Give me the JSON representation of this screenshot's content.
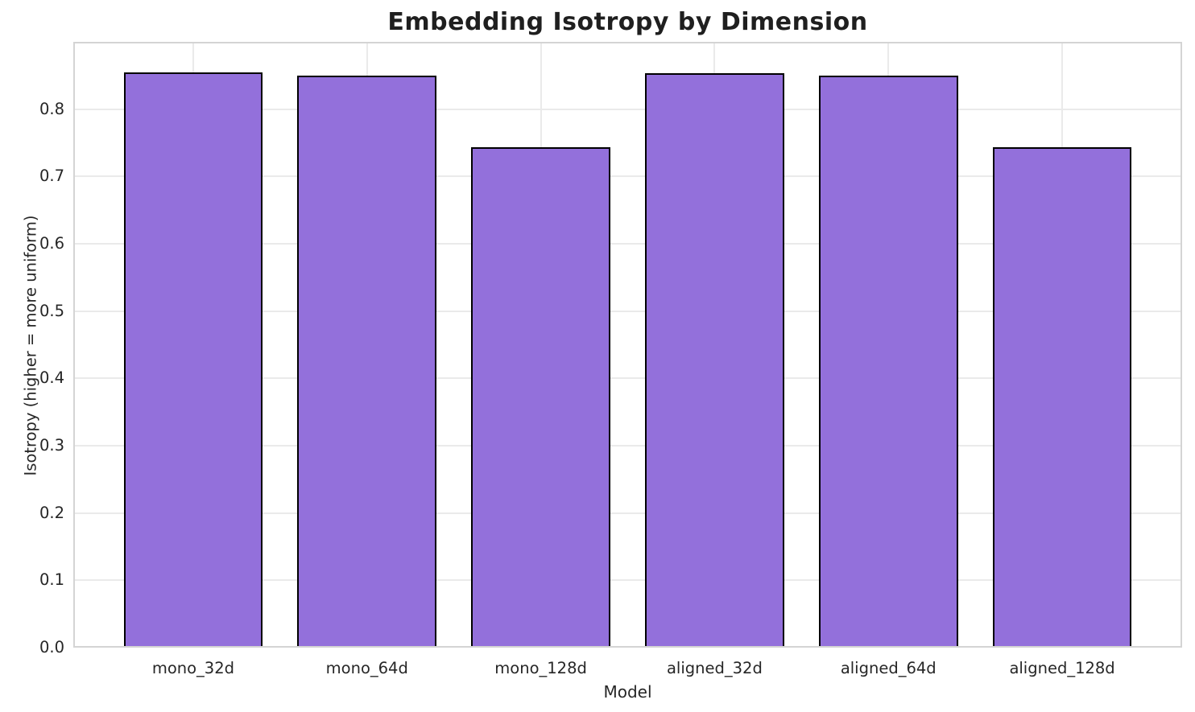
{
  "chart_data": {
    "type": "bar",
    "title": "Embedding Isotropy by Dimension",
    "xlabel": "Model",
    "ylabel": "Isotropy (higher = more uniform)",
    "categories": [
      "mono_32d",
      "mono_64d",
      "mono_128d",
      "aligned_32d",
      "aligned_64d",
      "aligned_128d"
    ],
    "values": [
      0.855,
      0.85,
      0.743,
      0.854,
      0.85,
      0.743
    ],
    "ylim": [
      0,
      0.9
    ],
    "yticks": [
      0.0,
      0.1,
      0.2,
      0.3,
      0.4,
      0.5,
      0.6,
      0.7,
      0.8
    ],
    "grid": true,
    "legend": false,
    "colors": {
      "bar_fill": "#9370DB",
      "bar_edge": "#000000",
      "grid": "#eaeaea",
      "spine": "#d4d4d4",
      "text": "#262626"
    }
  }
}
